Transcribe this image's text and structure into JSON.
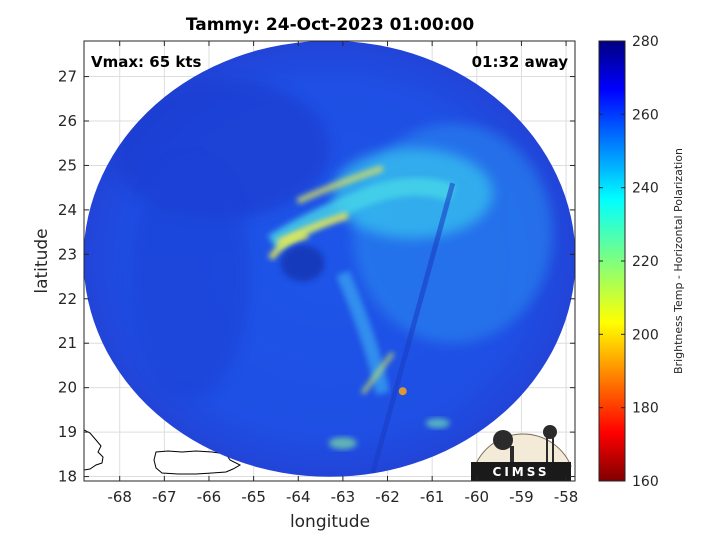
{
  "chart_data": {
    "type": "heatmap",
    "title": "Tammy: 24-Oct-2023 01:00:00",
    "xlabel": "longitude",
    "ylabel": "latitude",
    "xlim": [
      -68.8,
      -57.8
    ],
    "ylim": [
      17.9,
      27.8
    ],
    "xticks": [
      -68,
      -67,
      -66,
      -65,
      -64,
      -63,
      -62,
      -61,
      -60,
      -59,
      -58
    ],
    "yticks": [
      18,
      19,
      20,
      21,
      22,
      23,
      24,
      25,
      26,
      27
    ],
    "grid": true,
    "annotations": {
      "vmax": "Vmax: 65 kts",
      "time_offset": "01:32 away"
    },
    "storm_center": {
      "lon": -63.9,
      "lat": 22.8
    },
    "swath_center": {
      "lon": -63.3,
      "lat": 22.9
    },
    "colorbar": {
      "label": "Brightness Temp - Horizontal Polarization",
      "range": [
        160,
        280
      ],
      "ticks": [
        160,
        180,
        200,
        220,
        240,
        260,
        280
      ],
      "colormap": "jet"
    },
    "logo": "CIMSS"
  },
  "colors": {
    "background_field": "#1f4fe6",
    "land_fill": "#ffffff",
    "coastline": "#000000",
    "grid": "#dedede"
  }
}
